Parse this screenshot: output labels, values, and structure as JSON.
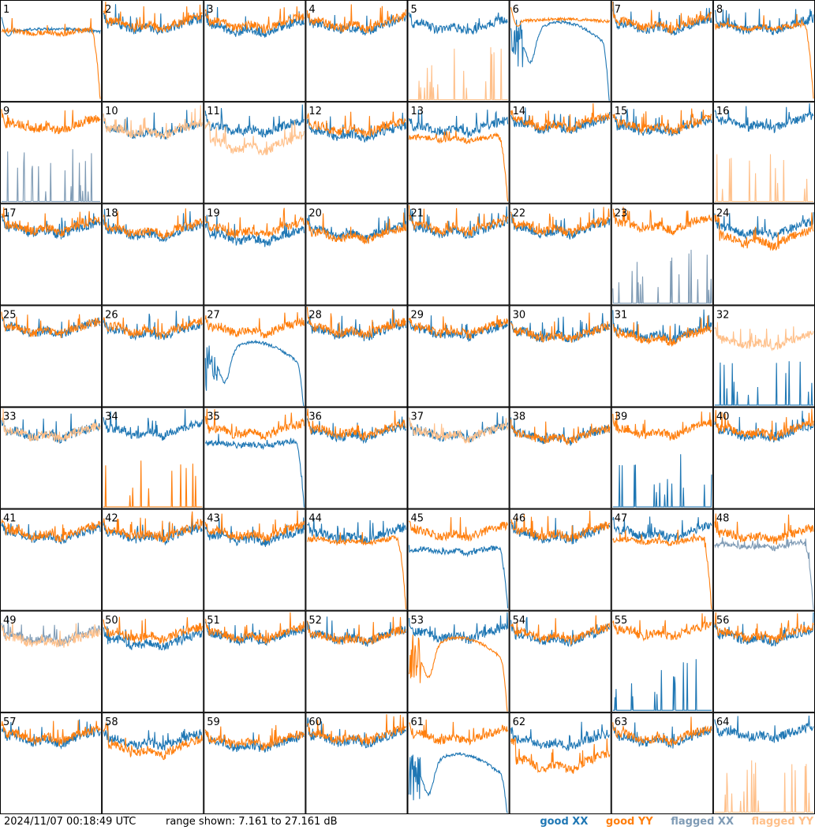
{
  "footer": {
    "timestamp": "2024/11/07 00:18:49 UTC",
    "range_text": "range shown: 7.161 to 27.161 dB"
  },
  "legend": [
    {
      "label": "good XX",
      "color": "#1f77b4"
    },
    {
      "label": "good YY",
      "color": "#ff7f0e"
    },
    {
      "label": "flagged XX",
      "color": "#7f9bb5"
    },
    {
      "label": "flagged YY",
      "color": "#ffc08a"
    }
  ],
  "chart_data": {
    "type": "line",
    "ylim": [
      7.161,
      27.161
    ],
    "grid_layout": "8x8",
    "panels": [
      {
        "label": "1",
        "xx": "good",
        "yy": "good",
        "xx_shape": "flat",
        "yy_shape": "dropout",
        "xx_level": 21,
        "yy_level": 21
      },
      {
        "label": "2",
        "xx": "good",
        "yy": "good",
        "xx_shape": "normal",
        "yy_shape": "normal",
        "xx_level": 22,
        "yy_level": 22.5
      },
      {
        "label": "3",
        "xx": "good",
        "yy": "good",
        "xx_shape": "normal",
        "yy_shape": "normal",
        "xx_level": 21.5,
        "yy_level": 22.5
      },
      {
        "label": "4",
        "xx": "good",
        "yy": "good",
        "xx_shape": "normal",
        "yy_shape": "normal",
        "xx_level": 22,
        "yy_level": 22.5
      },
      {
        "label": "5",
        "xx": "good",
        "yy": "flagged",
        "xx_shape": "normal",
        "yy_shape": "spikes",
        "xx_level": 22,
        "yy_level": 9
      },
      {
        "label": "6",
        "xx": "good",
        "yy": "good",
        "xx_shape": "dip",
        "yy_shape": "flat",
        "xx_level": 18,
        "yy_level": 23
      },
      {
        "label": "7",
        "xx": "good",
        "yy": "good",
        "xx_shape": "normal",
        "yy_shape": "normal",
        "xx_level": 22,
        "yy_level": 22.5
      },
      {
        "label": "8",
        "xx": "good",
        "yy": "good",
        "xx_shape": "normal",
        "yy_shape": "dropout",
        "xx_level": 22,
        "yy_level": 22
      },
      {
        "label": "9",
        "xx": "flagged",
        "yy": "good",
        "xx_shape": "spikes",
        "yy_shape": "normal",
        "xx_level": 9,
        "yy_level": 22.5
      },
      {
        "label": "10",
        "xx": "good",
        "yy": "flagged",
        "xx_shape": "normal",
        "yy_shape": "normal",
        "xx_level": 21.5,
        "yy_level": 21.5
      },
      {
        "label": "11",
        "xx": "good",
        "yy": "flagged",
        "xx_shape": "normal",
        "yy_shape": "low",
        "xx_level": 22,
        "yy_level": 18.5
      },
      {
        "label": "12",
        "xx": "good",
        "yy": "good",
        "xx_shape": "normal",
        "yy_shape": "normal",
        "xx_level": 21,
        "yy_level": 22
      },
      {
        "label": "13",
        "xx": "good",
        "yy": "good",
        "xx_shape": "normal",
        "yy_shape": "dropout",
        "xx_level": 22,
        "yy_level": 20
      },
      {
        "label": "14",
        "xx": "good",
        "yy": "good",
        "xx_shape": "normal",
        "yy_shape": "normal",
        "xx_level": 22.5,
        "yy_level": 23
      },
      {
        "label": "15",
        "xx": "good",
        "yy": "good",
        "xx_shape": "normal",
        "yy_shape": "normal",
        "xx_level": 22,
        "yy_level": 22.5
      },
      {
        "label": "16",
        "xx": "good",
        "yy": "flagged",
        "xx_shape": "normal",
        "yy_shape": "spikes",
        "xx_level": 23,
        "yy_level": 9
      },
      {
        "label": "17",
        "xx": "good",
        "yy": "good",
        "xx_shape": "normal",
        "yy_shape": "normal",
        "xx_level": 22,
        "yy_level": 22.5
      },
      {
        "label": "18",
        "xx": "good",
        "yy": "good",
        "xx_shape": "normal",
        "yy_shape": "normal",
        "xx_level": 21.5,
        "yy_level": 22
      },
      {
        "label": "19",
        "xx": "good",
        "yy": "good",
        "xx_shape": "normal",
        "yy_shape": "normal",
        "xx_level": 20.5,
        "yy_level": 22
      },
      {
        "label": "20",
        "xx": "good",
        "yy": "good",
        "xx_shape": "normal",
        "yy_shape": "normal",
        "xx_level": 21.5,
        "yy_level": 21
      },
      {
        "label": "21",
        "xx": "good",
        "yy": "good",
        "xx_shape": "normal",
        "yy_shape": "normal",
        "xx_level": 22,
        "yy_level": 22.5
      },
      {
        "label": "22",
        "xx": "good",
        "yy": "good",
        "xx_shape": "normal",
        "yy_shape": "normal",
        "xx_level": 22,
        "yy_level": 22.5
      },
      {
        "label": "23",
        "xx": "flagged",
        "yy": "good",
        "xx_shape": "spikes",
        "yy_shape": "normal",
        "xx_level": 14,
        "yy_level": 23
      },
      {
        "label": "24",
        "xx": "good",
        "yy": "good",
        "xx_shape": "normal",
        "yy_shape": "low",
        "xx_level": 22,
        "yy_level": 20
      },
      {
        "label": "25",
        "xx": "good",
        "yy": "good",
        "xx_shape": "normal",
        "yy_shape": "normal",
        "xx_level": 22.5,
        "yy_level": 22.5
      },
      {
        "label": "26",
        "xx": "good",
        "yy": "good",
        "xx_shape": "normal",
        "yy_shape": "normal",
        "xx_level": 22,
        "yy_level": 22.5
      },
      {
        "label": "27",
        "xx": "good",
        "yy": "good",
        "xx_shape": "dip",
        "yy_shape": "normal",
        "xx_level": 15,
        "yy_level": 22.5
      },
      {
        "label": "28",
        "xx": "good",
        "yy": "good",
        "xx_shape": "normal",
        "yy_shape": "normal",
        "xx_level": 22,
        "yy_level": 22.5
      },
      {
        "label": "29",
        "xx": "good",
        "yy": "good",
        "xx_shape": "normal",
        "yy_shape": "normal",
        "xx_level": 22,
        "yy_level": 22.5
      },
      {
        "label": "30",
        "xx": "good",
        "yy": "good",
        "xx_shape": "normal",
        "yy_shape": "normal",
        "xx_level": 21.5,
        "yy_level": 21.5
      },
      {
        "label": "31",
        "xx": "good",
        "yy": "good",
        "xx_shape": "normal",
        "yy_shape": "normal",
        "xx_level": 21.5,
        "yy_level": 21
      },
      {
        "label": "32",
        "xx": "good",
        "yy": "flagged",
        "xx_shape": "spikes",
        "yy_shape": "normal",
        "xx_level": 9,
        "yy_level": 20
      },
      {
        "label": "33",
        "xx": "good",
        "yy": "flagged",
        "xx_shape": "normal",
        "yy_shape": "normal",
        "xx_level": 22,
        "yy_level": 22
      },
      {
        "label": "34",
        "xx": "good",
        "yy": "good",
        "xx_shape": "normal",
        "yy_shape": "spikes",
        "xx_level": 22.5,
        "yy_level": 10
      },
      {
        "label": "35",
        "xx": "good",
        "yy": "good",
        "xx_shape": "dropout",
        "yy_shape": "normal",
        "xx_level": 20,
        "yy_level": 22.5
      },
      {
        "label": "36",
        "xx": "good",
        "yy": "good",
        "xx_shape": "normal",
        "yy_shape": "normal",
        "xx_level": 22,
        "yy_level": 22.5
      },
      {
        "label": "37",
        "xx": "good",
        "yy": "flagged",
        "xx_shape": "normal",
        "yy_shape": "normal",
        "xx_level": 22,
        "yy_level": 22
      },
      {
        "label": "38",
        "xx": "good",
        "yy": "good",
        "xx_shape": "normal",
        "yy_shape": "normal",
        "xx_level": 21.5,
        "yy_level": 21.5
      },
      {
        "label": "39",
        "xx": "good",
        "yy": "good",
        "xx_shape": "spikes",
        "yy_shape": "normal",
        "xx_level": 9,
        "yy_level": 22.5
      },
      {
        "label": "40",
        "xx": "good",
        "yy": "good",
        "xx_shape": "normal",
        "yy_shape": "normal",
        "xx_level": 22,
        "yy_level": 22.5
      },
      {
        "label": "41",
        "xx": "good",
        "yy": "good",
        "xx_shape": "normal",
        "yy_shape": "normal",
        "xx_level": 22,
        "yy_level": 22.5
      },
      {
        "label": "42",
        "xx": "good",
        "yy": "good",
        "xx_shape": "normal",
        "yy_shape": "normal",
        "xx_level": 22,
        "yy_level": 22.5
      },
      {
        "label": "43",
        "xx": "good",
        "yy": "good",
        "xx_shape": "normal",
        "yy_shape": "normal",
        "xx_level": 21.5,
        "yy_level": 22.5
      },
      {
        "label": "44",
        "xx": "good",
        "yy": "good",
        "xx_shape": "normal",
        "yy_shape": "dropout",
        "xx_level": 22,
        "yy_level": 21
      },
      {
        "label": "45",
        "xx": "good",
        "yy": "good",
        "xx_shape": "dropout",
        "yy_shape": "normal",
        "xx_level": 19,
        "yy_level": 22.5
      },
      {
        "label": "46",
        "xx": "good",
        "yy": "good",
        "xx_shape": "normal",
        "yy_shape": "normal",
        "xx_level": 22,
        "yy_level": 22.5
      },
      {
        "label": "47",
        "xx": "good",
        "yy": "good",
        "xx_shape": "normal",
        "yy_shape": "dropout",
        "xx_level": 22.5,
        "yy_level": 21
      },
      {
        "label": "48",
        "xx": "flagged",
        "yy": "good",
        "xx_shape": "dropout",
        "yy_shape": "normal",
        "xx_level": 20,
        "yy_level": 22
      },
      {
        "label": "49",
        "xx": "flagged",
        "yy": "flagged",
        "xx_shape": "normal",
        "yy_shape": "normal",
        "xx_level": 22,
        "yy_level": 21.5
      },
      {
        "label": "50",
        "xx": "good",
        "yy": "good",
        "xx_shape": "normal",
        "yy_shape": "normal",
        "xx_level": 21,
        "yy_level": 22.5
      },
      {
        "label": "51",
        "xx": "good",
        "yy": "good",
        "xx_shape": "normal",
        "yy_shape": "normal",
        "xx_level": 22,
        "yy_level": 22.5
      },
      {
        "label": "52",
        "xx": "good",
        "yy": "good",
        "xx_shape": "normal",
        "yy_shape": "normal",
        "xx_level": 22,
        "yy_level": 22
      },
      {
        "label": "53",
        "xx": "good",
        "yy": "good",
        "xx_shape": "normal",
        "yy_shape": "dip",
        "xx_level": 22.5,
        "yy_level": 17
      },
      {
        "label": "54",
        "xx": "good",
        "yy": "good",
        "xx_shape": "normal",
        "yy_shape": "normal",
        "xx_level": 22,
        "yy_level": 22.5
      },
      {
        "label": "55",
        "xx": "good",
        "yy": "good",
        "xx_shape": "spikes",
        "yy_shape": "normal",
        "xx_level": 10,
        "yy_level": 23
      },
      {
        "label": "56",
        "xx": "good",
        "yy": "good",
        "xx_shape": "normal",
        "yy_shape": "normal",
        "xx_level": 22,
        "yy_level": 22.5
      },
      {
        "label": "57",
        "xx": "good",
        "yy": "good",
        "xx_shape": "normal",
        "yy_shape": "normal",
        "xx_level": 22,
        "yy_level": 22.5
      },
      {
        "label": "58",
        "xx": "good",
        "yy": "good",
        "xx_shape": "normal",
        "yy_shape": "low",
        "xx_level": 21.5,
        "yy_level": 20
      },
      {
        "label": "59",
        "xx": "good",
        "yy": "good",
        "xx_shape": "normal",
        "yy_shape": "normal",
        "xx_level": 21,
        "yy_level": 21.5
      },
      {
        "label": "60",
        "xx": "good",
        "yy": "good",
        "xx_shape": "normal",
        "yy_shape": "normal",
        "xx_level": 22,
        "yy_level": 22.5
      },
      {
        "label": "61",
        "xx": "good",
        "yy": "good",
        "xx_shape": "dip",
        "yy_shape": "normal",
        "xx_level": 14,
        "yy_level": 22.5
      },
      {
        "label": "62",
        "xx": "good",
        "yy": "good",
        "xx_shape": "normal",
        "yy_shape": "low",
        "xx_level": 21.5,
        "yy_level": 17
      },
      {
        "label": "63",
        "xx": "good",
        "yy": "good",
        "xx_shape": "normal",
        "yy_shape": "normal",
        "xx_level": 22,
        "yy_level": 22.5
      },
      {
        "label": "64",
        "xx": "good",
        "yy": "flagged",
        "xx_shape": "normal",
        "yy_shape": "spikes",
        "xx_level": 23,
        "yy_level": 9
      }
    ]
  }
}
